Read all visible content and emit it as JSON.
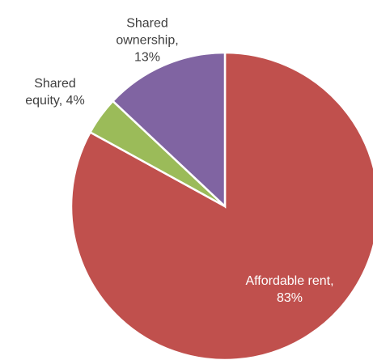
{
  "chart_data": {
    "type": "pie",
    "values": [
      83,
      4,
      13
    ],
    "value_labels": [
      "Affordable rent, 83%",
      "Shared equity, 4%",
      "Shared ownership, 13%"
    ],
    "colors": [
      "#c0504d",
      "#9bbb59",
      "#8064a2"
    ],
    "label_colors": [
      "#ffffff",
      "#404040",
      "#404040"
    ]
  }
}
